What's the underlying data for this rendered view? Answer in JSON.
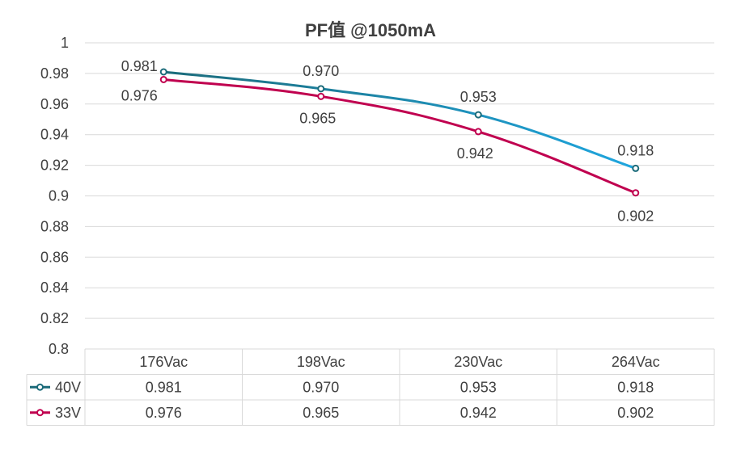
{
  "chart_data": {
    "type": "line",
    "title": "PF值 @1050mA",
    "categories": [
      "176Vac",
      "198Vac",
      "230Vac",
      "264Vac"
    ],
    "ylim": [
      0.8,
      1
    ],
    "yticks": [
      "1",
      "0.98",
      "0.96",
      "0.94",
      "0.92",
      "0.9",
      "0.88",
      "0.86",
      "0.84",
      "0.82",
      "0.8"
    ],
    "grid": true,
    "legend": "data-table",
    "series": [
      {
        "name": "40V",
        "values": [
          0.981,
          0.97,
          0.953,
          0.918
        ],
        "labels": [
          "0.981",
          "0.970",
          "0.953",
          "0.918"
        ],
        "colors": [
          "#1b6b7a",
          "#1fa6df"
        ]
      },
      {
        "name": "33V",
        "values": [
          0.976,
          0.965,
          0.942,
          0.902
        ],
        "labels": [
          "0.976",
          "0.965",
          "0.942",
          "0.902"
        ],
        "colors": [
          "#c0004f",
          "#c0004f"
        ]
      }
    ]
  }
}
